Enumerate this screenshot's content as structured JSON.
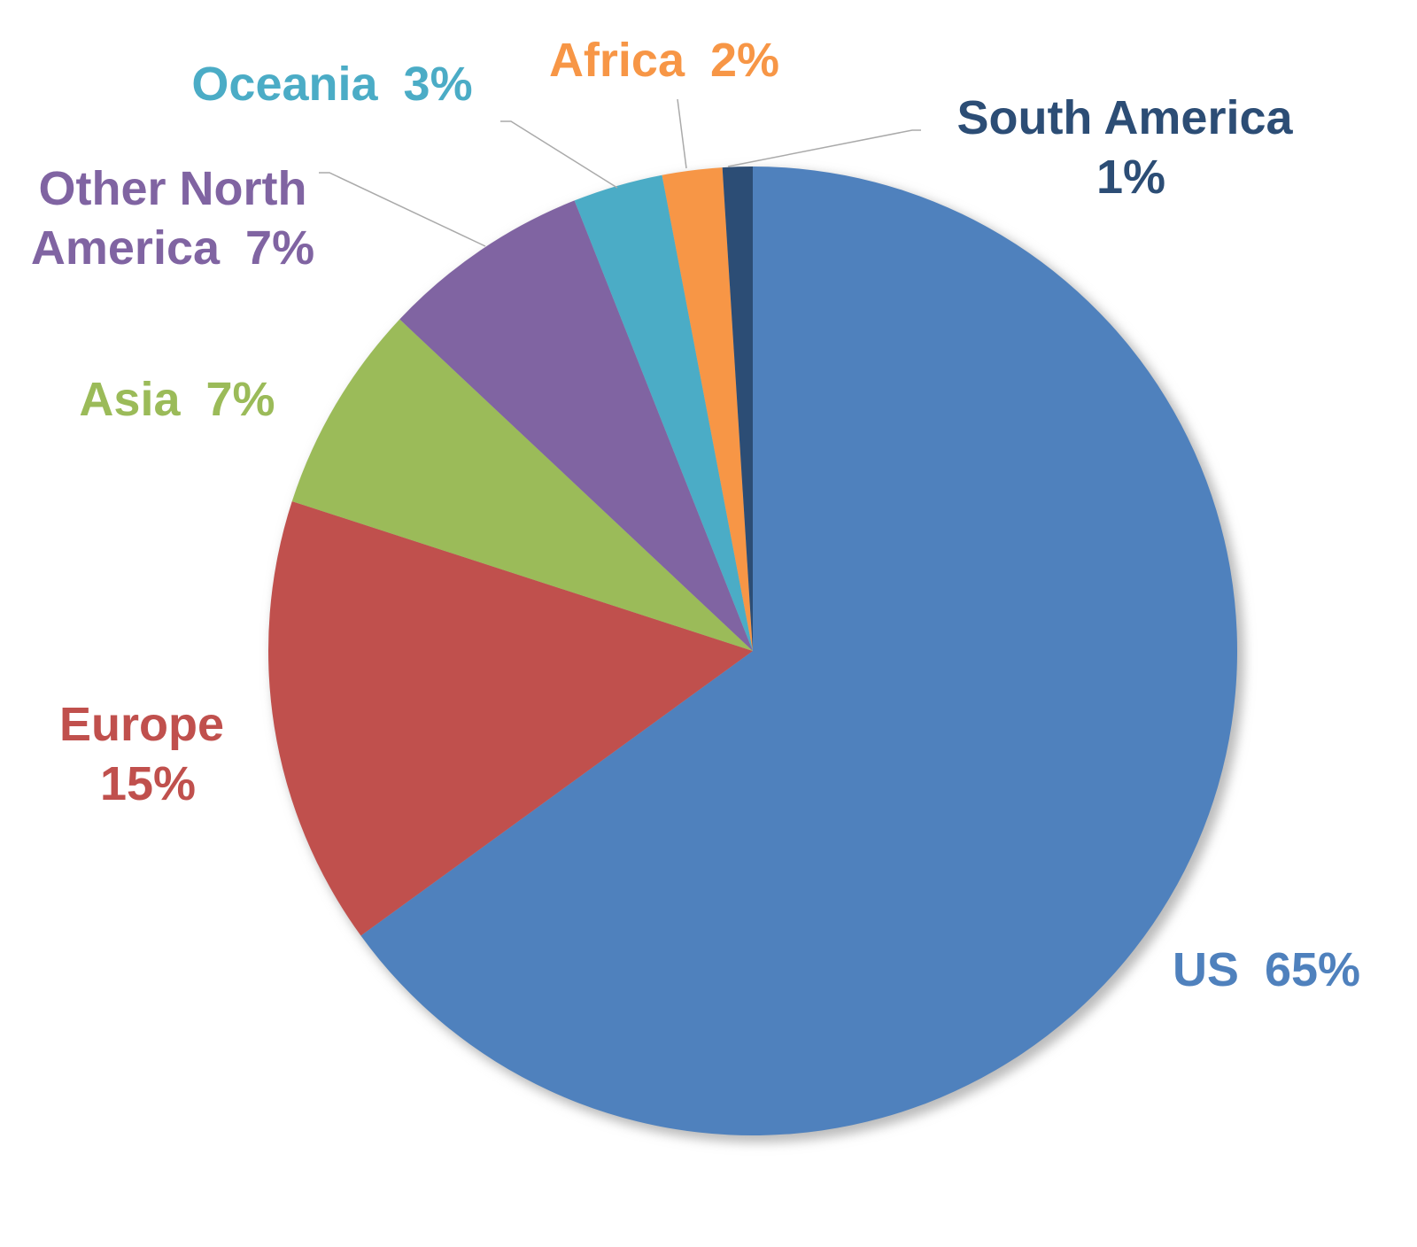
{
  "chart_data": {
    "type": "pie",
    "categories": [
      "US",
      "Europe",
      "Asia",
      "Other North America",
      "Oceania",
      "Africa",
      "South America"
    ],
    "values": [
      65,
      15,
      7,
      7,
      3,
      2,
      1
    ],
    "value_labels": [
      "65%",
      "15%",
      "7%",
      "7%",
      "3%",
      "2%",
      "1%"
    ],
    "colors": [
      "#4f81bd",
      "#c0504d",
      "#9bbb59",
      "#8064a2",
      "#4bacc6",
      "#f79646",
      "#2c4d75"
    ]
  }
}
